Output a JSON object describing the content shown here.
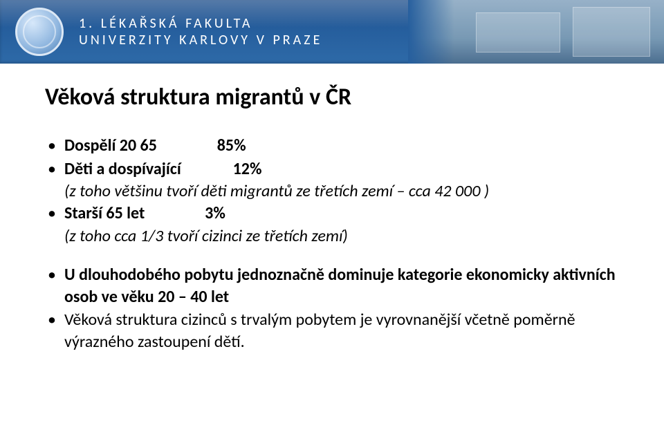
{
  "header": {
    "line1": "1. LÉKAŘSKÁ FAKULTA",
    "line2": "UNIVERZITY KARLOVY V PRAZE",
    "banner_gradient_top": "#1d4e8b",
    "banner_gradient_bottom": "#2e6aa8",
    "seal_border": "#dce8f5",
    "text_color": "#ffffff"
  },
  "slide": {
    "title": "Věková struktura migrantů v  ČR",
    "bullets": [
      {
        "label": "Dospělí 20 65",
        "value": "85%"
      },
      {
        "label": "Děti a dospívající",
        "value": "12%"
      }
    ],
    "sub1": "(z toho většinu tvoří  děti migrantů ze třetích zemí – cca 42 000 )",
    "bullet3": {
      "label": "Starší 65 let",
      "value": "3%"
    },
    "sub2": "(z toho  cca 1/3  tvoří cizinci ze třetích zemí)",
    "bullets2": [
      "U dlouhodobého pobytu jednoznačně dominuje kategorie ekonomicky aktivních osob ve věku 20 – 40 let",
      "Věková struktura cizinců s trvalým pobytem je vyrovnanější včetně poměrně výrazného zastoupení dětí."
    ],
    "title_fontsize": 34,
    "body_fontsize": 24,
    "text_color": "#000000",
    "background_color": "#ffffff"
  }
}
